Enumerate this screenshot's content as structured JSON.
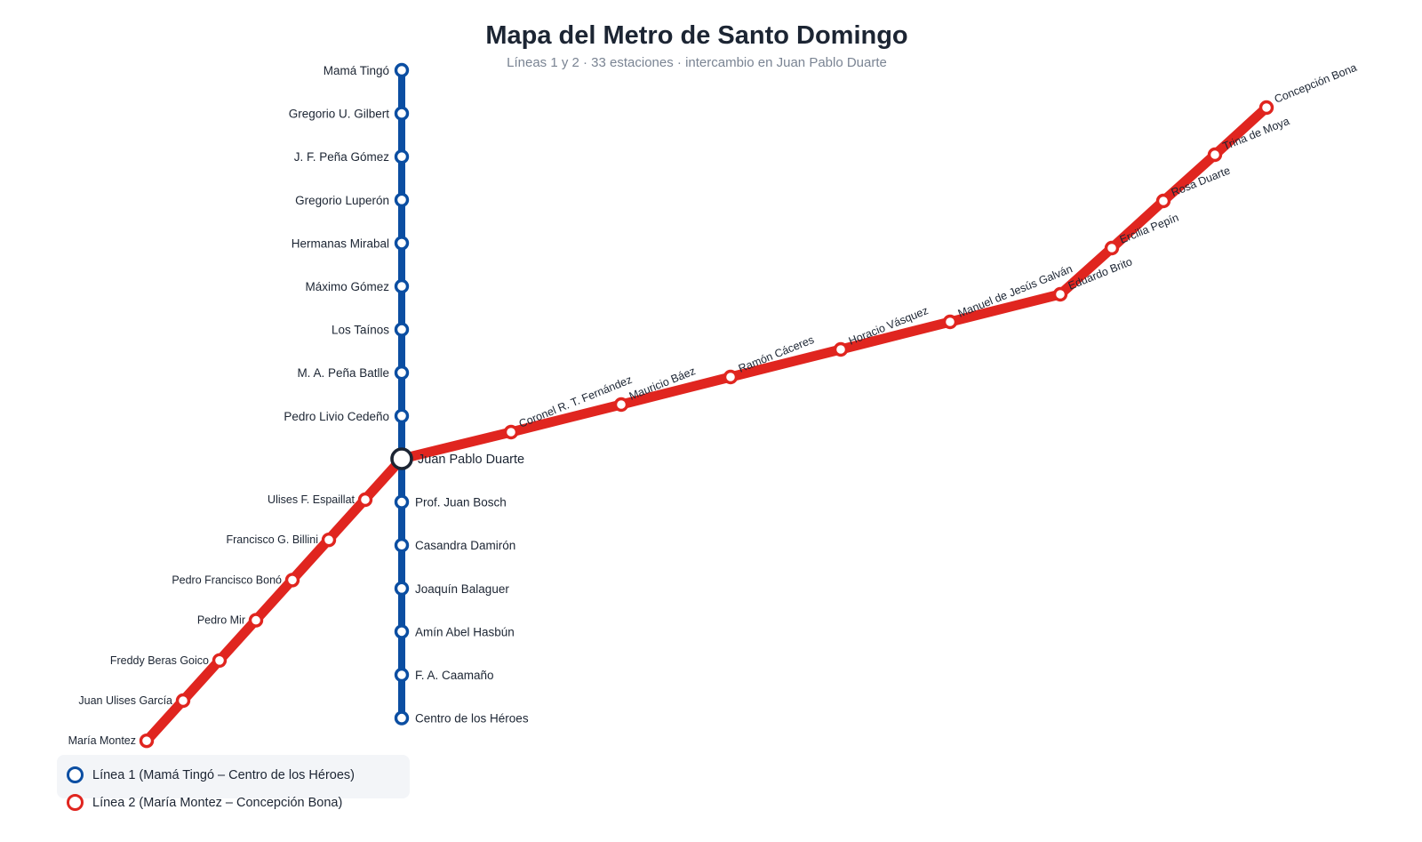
{
  "title": "Mapa del Metro de Santo Domingo",
  "subtitle": "Líneas 1 y 2 · 33 estaciones · intercambio en Juan Pablo Duarte",
  "interchange": "Juan Pablo Duarte",
  "lines": [
    {
      "id": "linea-1",
      "name": "Línea 1 (Mamá Tingó – Centro de los Héroes)",
      "color": "#0b4ea2",
      "stations_north": [
        "Mamá Tingó",
        "Gregorio U. Gilbert",
        "J. F. Peña Gómez",
        "Gregorio Luperón",
        "Hermanas Mirabal",
        "Máximo Gómez",
        "Los Taínos",
        "M. A. Peña Batlle",
        "Pedro Livio Cedeño"
      ],
      "stations_south": [
        "Prof. Juan Bosch",
        "Casandra Damirón",
        "Joaquín Balaguer",
        "Amín Abel Hasbún",
        "F. A. Caamaño",
        "Centro de los Héroes"
      ]
    },
    {
      "id": "linea-2",
      "name": "Línea 2 (María Montez – Concepción Bona)",
      "color": "#e0251f",
      "stations_west": [
        "Ulises F. Espaillat",
        "Francisco G. Billini",
        "Pedro Francisco Bonó",
        "Pedro Mir",
        "Freddy Beras Goico",
        "Juan Ulises García",
        "María Montez"
      ],
      "stations_east": [
        "Coronel R. T. Fernández",
        "Mauricio Báez",
        "Ramón Cáceres",
        "Horacio Vásquez",
        "Manuel de Jesús Galván",
        "Eduardo Brito",
        "Ercilia Pepín",
        "Rosa Duarte",
        "Trina de Moya",
        "Concepción Bona"
      ]
    }
  ],
  "hub_color": "#1c2533"
}
